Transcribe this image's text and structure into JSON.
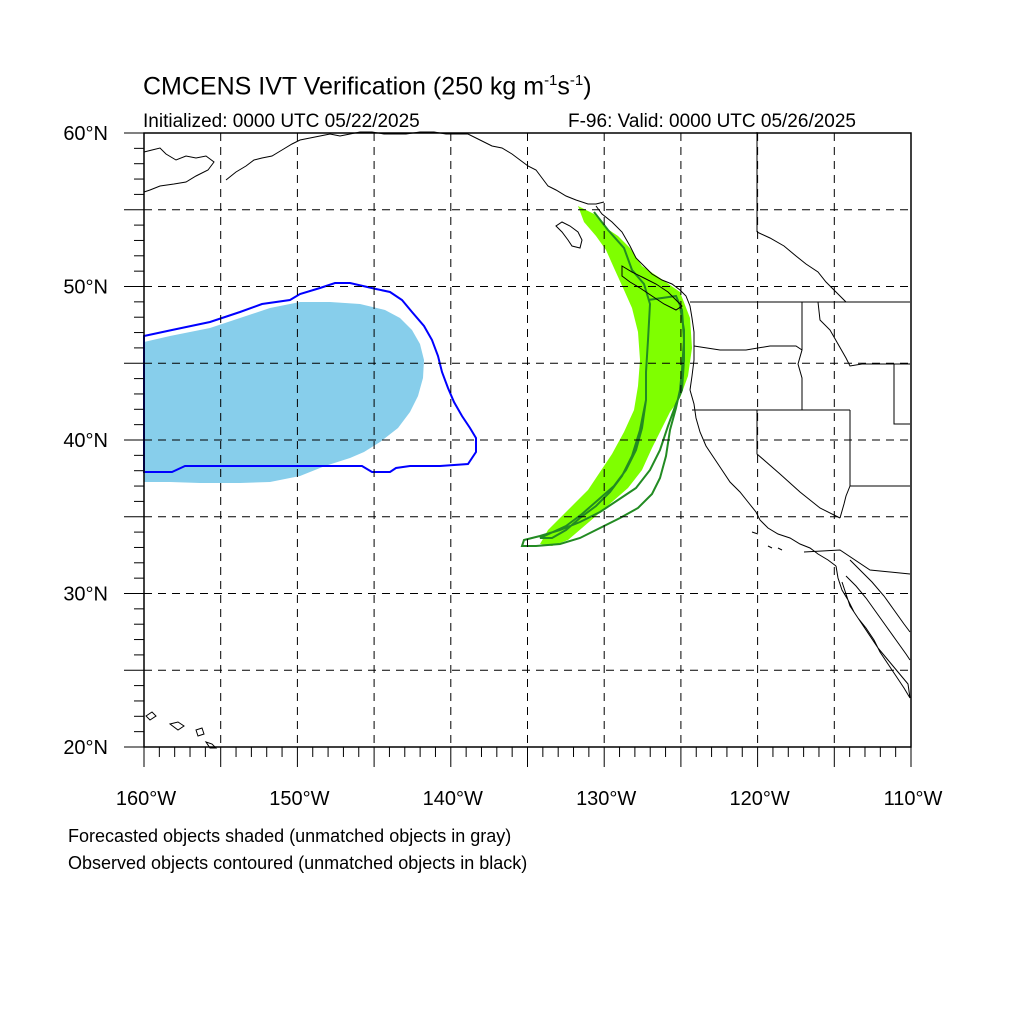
{
  "header": {
    "title_main": "CMCENS IVT Verification (250 kg m",
    "title_exp1": "-1",
    "title_mid": "s",
    "title_exp2": "-1",
    "title_end": ")",
    "initialized": "Initialized: 0000 UTC 05/22/2025",
    "valid": "F-96: Valid: 0000 UTC 05/26/2025"
  },
  "axes": {
    "lat_labels": [
      "60°N",
      "50°N",
      "40°N",
      "30°N",
      "20°N"
    ],
    "lon_labels": [
      "160°W",
      "150°W",
      "140°W",
      "130°W",
      "120°W",
      "110°W"
    ],
    "lon_range": [
      -160,
      -110
    ],
    "lat_range": [
      20,
      60
    ],
    "grid": true
  },
  "colors": {
    "forecast_matched_1": "#87ceeb",
    "forecast_matched_2": "#7fff00",
    "observed_contour_1": "#0000ff",
    "observed_contour_2": "#228b22",
    "coastline": "#000000"
  },
  "objects": [
    {
      "type": "forecast-shaded",
      "color": "#87ceeb"
    },
    {
      "type": "observed-contour",
      "color": "#0000ff"
    },
    {
      "type": "forecast-shaded",
      "color": "#7fff00"
    },
    {
      "type": "observed-contour",
      "color": "#228b22"
    }
  ],
  "footer": {
    "line1": "Forecasted objects shaded (unmatched objects in gray)",
    "line2": "Observed objects contoured (unmatched objects in black)"
  }
}
